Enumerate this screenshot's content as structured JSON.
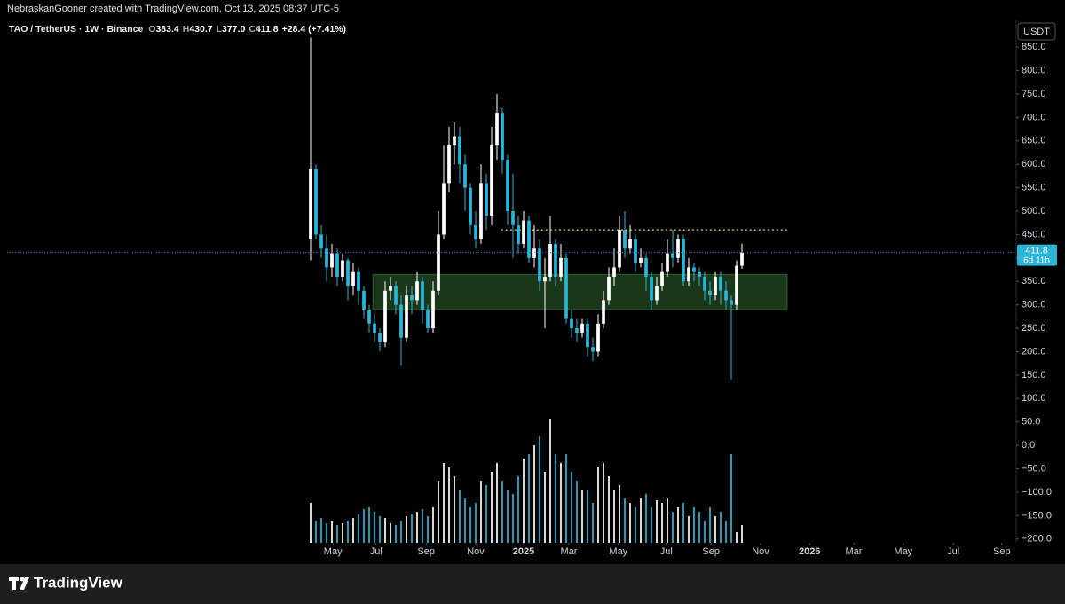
{
  "chart_data": {
    "type": "candlestick",
    "header": "NebraskanGooner created with TradingView.com, Oct 13, 2025 08:37 UTC-5",
    "symbol": "TAO / TetherUS · 1W · Binance",
    "ohlc_legend": [
      {
        "key": "O",
        "text": "383.4"
      },
      {
        "key": "H",
        "text": "430.7"
      },
      {
        "key": "L",
        "text": "377.0"
      },
      {
        "key": "C",
        "text": "411.8"
      }
    ],
    "change": "+28.4 (+7.41%)",
    "currency": "USDT",
    "last_price": {
      "label": "411.8",
      "countdown": "6d 11h"
    },
    "brand": "TradingView",
    "up_color": "#ffffff",
    "down_color": "#2bb5d8",
    "ylim": [
      -208,
      909
    ],
    "yticks": [
      {
        "value": -200,
        "label": "−200.0"
      },
      {
        "value": -150,
        "label": "−150.0"
      },
      {
        "value": -100,
        "label": "−100.0"
      },
      {
        "value": -50,
        "label": "−50.0"
      },
      {
        "value": 0,
        "label": "0.0"
      },
      {
        "value": 50,
        "label": "50.0"
      },
      {
        "value": 100,
        "label": "100.0"
      },
      {
        "value": 150,
        "label": "150.0"
      },
      {
        "value": 200,
        "label": "200.0"
      },
      {
        "value": 250,
        "label": "250.0"
      },
      {
        "value": 300,
        "label": "300.0"
      },
      {
        "value": 350,
        "label": "350.0"
      },
      {
        "value": 400,
        "label": "400.0"
      },
      {
        "value": 450,
        "label": "450.0"
      },
      {
        "value": 500,
        "label": "500.0"
      },
      {
        "value": 550,
        "label": "550.0"
      },
      {
        "value": 600,
        "label": "600.0"
      },
      {
        "value": 650,
        "label": "650.0"
      },
      {
        "value": 700,
        "label": "700.0"
      },
      {
        "value": 750,
        "label": "750.0"
      },
      {
        "value": 800,
        "label": "800.0"
      },
      {
        "value": 850,
        "label": "850.0"
      }
    ],
    "xlim": [
      -57,
      132.5
    ],
    "xticks": [
      {
        "value": 4.2,
        "label": "May"
      },
      {
        "value": 12.3,
        "label": "Jul"
      },
      {
        "value": 21.7,
        "label": "Sep"
      },
      {
        "value": 31,
        "label": "Nov"
      },
      {
        "value": 40,
        "label": "2025"
      },
      {
        "value": 48.5,
        "label": "Mar"
      },
      {
        "value": 57.8,
        "label": "May"
      },
      {
        "value": 66.8,
        "label": "Jul"
      },
      {
        "value": 75.2,
        "label": "Sep"
      },
      {
        "value": 84.5,
        "label": "Nov"
      },
      {
        "value": 93.7,
        "label": "2026"
      },
      {
        "value": 102,
        "label": "Mar"
      },
      {
        "value": 111.3,
        "label": "May"
      },
      {
        "value": 120.7,
        "label": "Jul"
      },
      {
        "value": 129.8,
        "label": "Sep"
      }
    ],
    "open": [
      440,
      590,
      450,
      420,
      380,
      410,
      360,
      395,
      340,
      370,
      330,
      290,
      260,
      240,
      220,
      330,
      340,
      300,
      230,
      320,
      310,
      350,
      290,
      250,
      330,
      450,
      560,
      640,
      660,
      600,
      550,
      470,
      440,
      560,
      490,
      640,
      710,
      610,
      500,
      470,
      430,
      480,
      400,
      420,
      350,
      360,
      430,
      360,
      400,
      270,
      250,
      240,
      260,
      210,
      200,
      260,
      310,
      360,
      380,
      460,
      420,
      440,
      390,
      400,
      360,
      310,
      340,
      370,
      410,
      400,
      440,
      350,
      380,
      370,
      360,
      330,
      320,
      360,
      330,
      310,
      300,
      383.4
    ],
    "high": [
      870,
      600,
      470,
      450,
      430,
      420,
      410,
      400,
      390,
      380,
      340,
      300,
      280,
      250,
      350,
      360,
      350,
      320,
      340,
      340,
      370,
      360,
      300,
      350,
      500,
      640,
      680,
      690,
      680,
      620,
      560,
      500,
      600,
      580,
      680,
      750,
      720,
      620,
      580,
      490,
      500,
      490,
      470,
      440,
      400,
      490,
      440,
      430,
      410,
      290,
      270,
      270,
      270,
      230,
      280,
      330,
      380,
      420,
      490,
      500,
      470,
      450,
      420,
      410,
      370,
      360,
      390,
      440,
      460,
      450,
      450,
      400,
      390,
      380,
      370,
      350,
      370,
      370,
      350,
      320,
      395,
      430.7
    ],
    "low": [
      395,
      440,
      400,
      350,
      360,
      340,
      350,
      310,
      320,
      300,
      270,
      240,
      220,
      200,
      210,
      310,
      280,
      170,
      220,
      280,
      300,
      260,
      240,
      240,
      320,
      440,
      540,
      600,
      560,
      500,
      450,
      420,
      430,
      460,
      470,
      610,
      580,
      470,
      400,
      410,
      420,
      390,
      380,
      330,
      250,
      350,
      340,
      350,
      260,
      230,
      220,
      230,
      190,
      180,
      190,
      250,
      300,
      340,
      370,
      400,
      410,
      370,
      380,
      330,
      290,
      300,
      330,
      360,
      380,
      390,
      340,
      340,
      350,
      340,
      310,
      300,
      310,
      300,
      290,
      140,
      290,
      377.0
    ],
    "close": [
      590,
      450,
      420,
      380,
      410,
      360,
      395,
      340,
      370,
      330,
      290,
      260,
      240,
      220,
      330,
      340,
      300,
      230,
      320,
      310,
      350,
      290,
      250,
      330,
      450,
      560,
      640,
      660,
      600,
      550,
      470,
      440,
      560,
      490,
      640,
      710,
      610,
      500,
      470,
      430,
      480,
      400,
      420,
      350,
      360,
      430,
      360,
      400,
      270,
      250,
      240,
      260,
      210,
      200,
      260,
      310,
      360,
      380,
      460,
      420,
      440,
      390,
      400,
      360,
      310,
      340,
      370,
      410,
      400,
      440,
      350,
      380,
      370,
      360,
      330,
      320,
      360,
      330,
      310,
      300,
      383.4,
      411.8
    ],
    "volume": [
      45,
      25,
      28,
      22,
      25,
      20,
      22,
      25,
      28,
      32,
      38,
      40,
      35,
      30,
      28,
      22,
      20,
      25,
      30,
      32,
      35,
      38,
      30,
      40,
      70,
      90,
      85,
      75,
      60,
      50,
      40,
      45,
      70,
      65,
      80,
      90,
      70,
      60,
      55,
      75,
      95,
      100,
      110,
      120,
      80,
      140,
      100,
      90,
      100,
      80,
      70,
      60,
      60,
      45,
      85,
      90,
      75,
      60,
      65,
      50,
      45,
      40,
      50,
      55,
      40,
      48,
      45,
      50,
      35,
      40,
      45,
      30,
      40,
      35,
      25,
      40,
      30,
      35,
      25,
      100,
      12,
      20
    ],
    "vlim": [
      0,
      160
    ],
    "zone": {
      "y": [
        290,
        365
      ],
      "x": [
        11.7,
        89.5
      ],
      "color": "#1e3d1c"
    },
    "resistance": {
      "y": 460,
      "x": [
        35.8,
        89.5
      ],
      "color": "#f0e14a"
    }
  }
}
